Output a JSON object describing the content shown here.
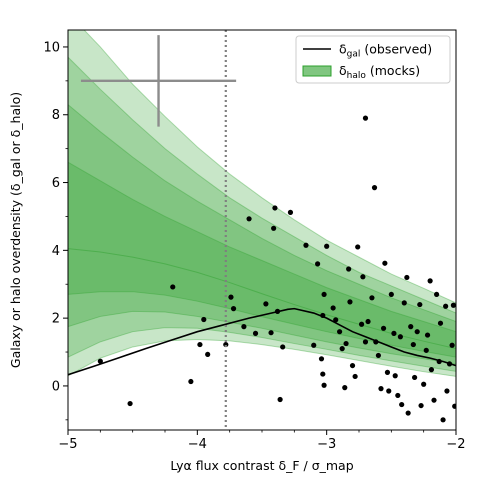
{
  "chart_data": {
    "type": "line",
    "xlabel": "Lyα flux contrast δ_F / σ_map",
    "ylabel": "Galaxy or halo overdensity (δ_gal or δ_halo)",
    "xlim": [
      -5,
      -2
    ],
    "ylim": [
      -1.3,
      10.5
    ],
    "xticks": [
      "−5",
      "−4",
      "−3",
      "−2"
    ],
    "yticks": [
      "0",
      "2",
      "4",
      "6",
      "8",
      "10"
    ],
    "xtick_values": [
      -5,
      -4,
      -3,
      -2
    ],
    "ytick_values": [
      0,
      2,
      4,
      6,
      8,
      10
    ],
    "grid": false,
    "legend": {
      "placement": "top-right",
      "entries": [
        {
          "label_main": "δ",
          "label_sub": "gal",
          "label_rest": " (observed)",
          "kind": "line",
          "color": "#000000"
        },
        {
          "label_main": "δ",
          "label_sub": "halo",
          "label_rest": " (mocks)",
          "kind": "patch",
          "color": "#2ca02c"
        }
      ]
    },
    "vline": {
      "x": -3.78,
      "style": "dotted",
      "color": "#7f7f7f"
    },
    "error_cross": {
      "x": -4.3,
      "y": 9.0,
      "xerr_low": 0.6,
      "xerr_high": 0.6,
      "yerr_low": 1.35,
      "yerr_high": 1.35,
      "color": "#8c8c8c"
    },
    "series": [
      {
        "name": "δgal (observed)",
        "kind": "line",
        "color": "#000000",
        "x": [
          -5.0,
          -4.8,
          -4.6,
          -4.4,
          -4.2,
          -4.0,
          -3.8,
          -3.6,
          -3.45,
          -3.3,
          -3.25,
          -3.1,
          -3.0,
          -2.9,
          -2.8,
          -2.7,
          -2.6,
          -2.5,
          -2.4,
          -2.3,
          -2.2,
          -2.1,
          -2.0
        ],
        "y": [
          0.33,
          0.58,
          0.84,
          1.1,
          1.35,
          1.6,
          1.8,
          2.0,
          2.13,
          2.26,
          2.28,
          2.15,
          2.0,
          1.8,
          1.6,
          1.45,
          1.3,
          1.15,
          1.0,
          0.9,
          0.82,
          0.72,
          0.6
        ]
      }
    ],
    "bands": {
      "name": "δhalo (mocks)",
      "color": "#2ca02c",
      "x": [
        -5.0,
        -4.75,
        -4.5,
        -4.25,
        -4.0,
        -3.75,
        -3.5,
        -3.25,
        -3.0,
        -2.75,
        -2.5,
        -2.25,
        -2.0
      ],
      "median": [
        4.05,
        3.95,
        3.8,
        3.6,
        3.35,
        3.05,
        2.72,
        2.4,
        2.1,
        1.82,
        1.55,
        1.32,
        1.1
      ],
      "levels": [
        {
          "lower": [
            2.7,
            2.78,
            2.78,
            2.68,
            2.5,
            2.28,
            2.04,
            1.82,
            1.6,
            1.4,
            1.2,
            1.02,
            0.85
          ],
          "upper": [
            6.6,
            6.05,
            5.5,
            5.0,
            4.55,
            4.1,
            3.7,
            3.3,
            2.9,
            2.55,
            2.2,
            1.9,
            1.6
          ]
        },
        {
          "lower": [
            1.75,
            2.05,
            2.2,
            2.18,
            2.05,
            1.88,
            1.7,
            1.5,
            1.3,
            1.12,
            0.95,
            0.8,
            0.65
          ],
          "upper": [
            8.3,
            7.5,
            6.75,
            6.05,
            5.45,
            4.9,
            4.35,
            3.85,
            3.4,
            3.0,
            2.6,
            2.25,
            1.9
          ]
        },
        {
          "lower": [
            0.85,
            1.3,
            1.6,
            1.72,
            1.7,
            1.58,
            1.43,
            1.25,
            1.08,
            0.9,
            0.74,
            0.58,
            0.43
          ],
          "upper": [
            9.7,
            8.75,
            7.85,
            7.0,
            6.25,
            5.55,
            4.95,
            4.4,
            3.85,
            3.35,
            2.95,
            2.55,
            2.15
          ]
        },
        {
          "lower": [
            0.3,
            0.82,
            1.15,
            1.33,
            1.37,
            1.33,
            1.22,
            1.08,
            0.92,
            0.75,
            0.58,
            0.42,
            0.28
          ],
          "upper": [
            11.0,
            10.0,
            8.9,
            7.95,
            7.05,
            6.25,
            5.55,
            4.9,
            4.3,
            3.8,
            3.3,
            2.88,
            2.45
          ]
        }
      ]
    },
    "scatter": {
      "name": "galaxies",
      "color": "#000000",
      "points": [
        [
          -4.75,
          0.73
        ],
        [
          -4.52,
          -0.52
        ],
        [
          -4.19,
          2.92
        ],
        [
          -4.05,
          0.13
        ],
        [
          -3.98,
          1.22
        ],
        [
          -3.95,
          1.96
        ],
        [
          -3.92,
          0.93
        ],
        [
          -3.78,
          1.22
        ],
        [
          -3.74,
          2.62
        ],
        [
          -3.72,
          2.28
        ],
        [
          -3.64,
          1.75
        ],
        [
          -3.6,
          4.93
        ],
        [
          -3.55,
          1.55
        ],
        [
          -3.47,
          2.42
        ],
        [
          -3.43,
          1.57
        ],
        [
          -3.41,
          4.65
        ],
        [
          -3.4,
          5.25
        ],
        [
          -3.38,
          2.2
        ],
        [
          -3.34,
          1.15
        ],
        [
          -3.36,
          -0.4
        ],
        [
          -3.28,
          5.12
        ],
        [
          -3.16,
          4.15
        ],
        [
          -3.1,
          1.2
        ],
        [
          -3.07,
          3.6
        ],
        [
          -3.04,
          0.8
        ],
        [
          -3.03,
          2.08
        ],
        [
          -3.02,
          2.7
        ],
        [
          -3.03,
          0.35
        ],
        [
          -3.0,
          4.12
        ],
        [
          -3.02,
          0.02
        ],
        [
          -2.95,
          2.3
        ],
        [
          -2.93,
          1.95
        ],
        [
          -2.9,
          1.6
        ],
        [
          -2.88,
          1.1
        ],
        [
          -2.86,
          -0.05
        ],
        [
          -2.85,
          1.25
        ],
        [
          -2.83,
          3.45
        ],
        [
          -2.82,
          2.48
        ],
        [
          -2.8,
          0.6
        ],
        [
          -2.78,
          0.28
        ],
        [
          -2.76,
          4.1
        ],
        [
          -2.73,
          1.82
        ],
        [
          -2.72,
          3.22
        ],
        [
          -2.7,
          7.9
        ],
        [
          -2.7,
          1.3
        ],
        [
          -2.68,
          1.9
        ],
        [
          -2.65,
          2.6
        ],
        [
          -2.63,
          5.85
        ],
        [
          -2.62,
          1.3
        ],
        [
          -2.6,
          0.9
        ],
        [
          -2.58,
          -0.08
        ],
        [
          -2.56,
          1.7
        ],
        [
          -2.55,
          3.62
        ],
        [
          -2.53,
          0.4
        ],
        [
          -2.52,
          -0.15
        ],
        [
          -2.5,
          2.7
        ],
        [
          -2.48,
          1.55
        ],
        [
          -2.47,
          0.3
        ],
        [
          -2.45,
          -0.28
        ],
        [
          -2.43,
          1.45
        ],
        [
          -2.42,
          -0.55
        ],
        [
          -2.4,
          2.45
        ],
        [
          -2.38,
          3.2
        ],
        [
          -2.37,
          -0.8
        ],
        [
          -2.35,
          1.75
        ],
        [
          -2.33,
          1.22
        ],
        [
          -2.32,
          0.25
        ],
        [
          -2.3,
          1.6
        ],
        [
          -2.28,
          2.4
        ],
        [
          -2.27,
          -0.58
        ],
        [
          -2.25,
          0.05
        ],
        [
          -2.23,
          1.05
        ],
        [
          -2.22,
          1.5
        ],
        [
          -2.2,
          3.1
        ],
        [
          -2.19,
          0.48
        ],
        [
          -2.17,
          -0.42
        ],
        [
          -2.15,
          2.7
        ],
        [
          -2.13,
          0.72
        ],
        [
          -2.12,
          1.85
        ],
        [
          -2.1,
          -1.0
        ],
        [
          -2.08,
          2.35
        ],
        [
          -2.07,
          -0.15
        ],
        [
          -2.05,
          0.65
        ],
        [
          -2.03,
          1.2
        ],
        [
          -2.02,
          2.38
        ],
        [
          -2.01,
          -0.6
        ]
      ]
    }
  }
}
